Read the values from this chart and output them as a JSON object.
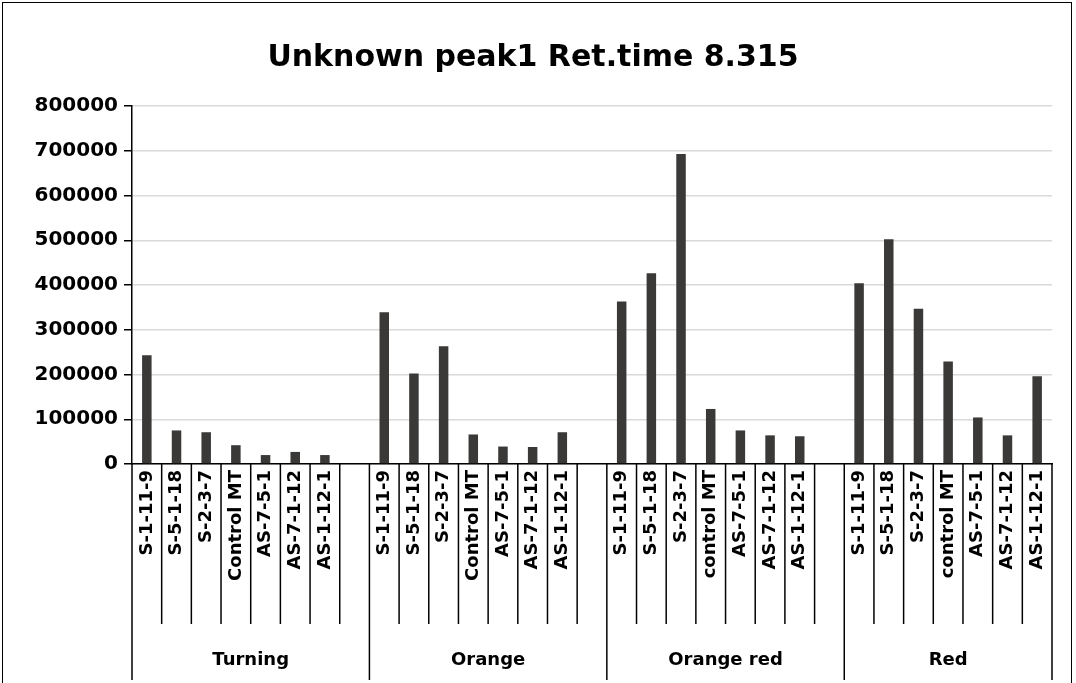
{
  "chart_data": {
    "type": "bar",
    "title": "Unknown peak1 Ret.time 8.315",
    "categories": [
      "S-1-11-9",
      "S-5-1-18",
      "S-2-3-7",
      "Control MT",
      "AS-7-5-1",
      "AS-7-1-12",
      "AS-1-12-1",
      null,
      "S-1-11-9",
      "S-5-1-18",
      "S-2-3-7",
      "Control MT",
      "AS-7-5-1",
      "AS-7-1-12",
      "AS-1-12-1",
      null,
      "S-1-11-9",
      "S-5-1-18",
      "S-2-3-7",
      "control MT",
      "AS-7-5-1",
      "AS-7-1-12",
      "AS-1-12-1",
      null,
      "S-1-11-9",
      "S-5-1-18",
      "S-2-3-7",
      "control MT",
      "AS-7-5-1",
      "AS-7-1-12",
      "AS-1-12-1"
    ],
    "values": [
      243000,
      75000,
      71000,
      42000,
      20000,
      27000,
      20000,
      null,
      339000,
      202000,
      263000,
      66000,
      39000,
      38000,
      71000,
      null,
      363000,
      426000,
      693000,
      123000,
      75000,
      64000,
      62000,
      null,
      404000,
      502000,
      347000,
      229000,
      104000,
      64000,
      196000
    ],
    "color": "#3a3938",
    "annotations": [
      "Turning",
      "Orange",
      "Orange red",
      "Red"
    ],
    "ylim": [
      0,
      800000
    ],
    "yticks": [
      0,
      100000,
      200000,
      300000,
      400000,
      500000,
      600000,
      700000,
      800000
    ],
    "grid": "y",
    "legend": false
  }
}
